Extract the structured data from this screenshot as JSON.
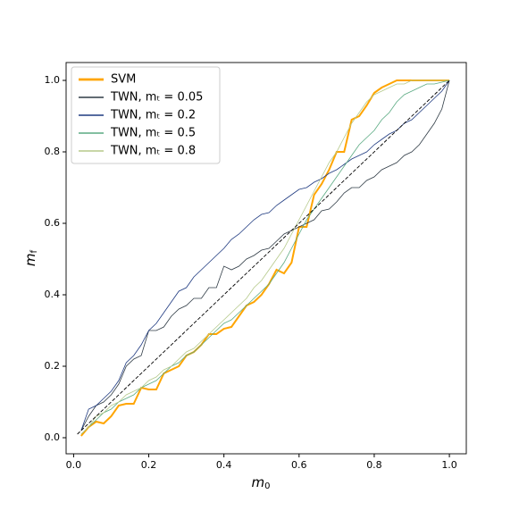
{
  "chart_data": {
    "type": "line",
    "x_label": {
      "symbol": "m",
      "subscript": "0"
    },
    "y_label": {
      "symbol": "m",
      "subscript": "f"
    },
    "x": [
      0.02,
      0.04,
      0.06,
      0.08,
      0.1,
      0.12,
      0.14,
      0.16,
      0.18,
      0.2,
      0.22,
      0.24,
      0.26,
      0.28,
      0.3,
      0.32,
      0.34,
      0.36,
      0.38,
      0.4,
      0.42,
      0.44,
      0.46,
      0.48,
      0.5,
      0.52,
      0.54,
      0.56,
      0.58,
      0.6,
      0.62,
      0.64,
      0.66,
      0.68,
      0.7,
      0.72,
      0.74,
      0.76,
      0.78,
      0.8,
      0.82,
      0.84,
      0.86,
      0.88,
      0.9,
      0.92,
      0.94,
      0.96,
      0.98,
      1.0
    ],
    "series": [
      {
        "name": "SVM",
        "color": "#ffa500",
        "width": 2,
        "values": [
          0.005,
          0.03,
          0.045,
          0.04,
          0.06,
          0.09,
          0.095,
          0.095,
          0.14,
          0.135,
          0.135,
          0.18,
          0.19,
          0.2,
          0.23,
          0.24,
          0.26,
          0.29,
          0.29,
          0.305,
          0.31,
          0.34,
          0.37,
          0.38,
          0.4,
          0.43,
          0.47,
          0.46,
          0.49,
          0.59,
          0.59,
          0.68,
          0.71,
          0.75,
          0.8,
          0.8,
          0.89,
          0.9,
          0.93,
          0.965,
          0.98,
          0.99,
          1,
          1,
          1,
          1,
          1,
          1,
          1,
          1
        ]
      },
      {
        "name": "TWN, mₜ = 0.05",
        "color": "#2f3b45",
        "width": 0.8,
        "values": [
          0.02,
          0.06,
          0.09,
          0.1,
          0.12,
          0.15,
          0.2,
          0.22,
          0.23,
          0.3,
          0.3,
          0.31,
          0.34,
          0.36,
          0.37,
          0.39,
          0.39,
          0.42,
          0.42,
          0.48,
          0.47,
          0.48,
          0.5,
          0.51,
          0.525,
          0.53,
          0.55,
          0.57,
          0.58,
          0.59,
          0.6,
          0.61,
          0.635,
          0.64,
          0.66,
          0.685,
          0.7,
          0.7,
          0.72,
          0.73,
          0.75,
          0.76,
          0.77,
          0.79,
          0.8,
          0.82,
          0.85,
          0.88,
          0.92,
          1.0
        ]
      },
      {
        "name": "TWN, mₜ = 0.2",
        "color": "#1f3a80",
        "width": 0.8,
        "values": [
          0.02,
          0.08,
          0.09,
          0.11,
          0.13,
          0.16,
          0.21,
          0.23,
          0.26,
          0.3,
          0.32,
          0.35,
          0.38,
          0.41,
          0.42,
          0.45,
          0.47,
          0.49,
          0.51,
          0.53,
          0.555,
          0.57,
          0.59,
          0.61,
          0.625,
          0.63,
          0.65,
          0.665,
          0.68,
          0.695,
          0.7,
          0.715,
          0.725,
          0.74,
          0.75,
          0.765,
          0.78,
          0.79,
          0.8,
          0.82,
          0.835,
          0.85,
          0.86,
          0.88,
          0.89,
          0.91,
          0.93,
          0.95,
          0.97,
          1.0
        ]
      },
      {
        "name": "TWN, mₜ = 0.5",
        "color": "#5aaa82",
        "width": 0.8,
        "values": [
          0.01,
          0.03,
          0.05,
          0.07,
          0.08,
          0.1,
          0.11,
          0.12,
          0.14,
          0.15,
          0.16,
          0.18,
          0.2,
          0.21,
          0.23,
          0.24,
          0.26,
          0.28,
          0.3,
          0.32,
          0.33,
          0.35,
          0.37,
          0.39,
          0.41,
          0.43,
          0.46,
          0.49,
          0.53,
          0.57,
          0.61,
          0.64,
          0.67,
          0.7,
          0.73,
          0.76,
          0.79,
          0.82,
          0.84,
          0.86,
          0.89,
          0.91,
          0.94,
          0.96,
          0.97,
          0.98,
          0.99,
          0.99,
          0.995,
          1.0
        ]
      },
      {
        "name": "TWN, mₜ = 0.8",
        "color": "#b5c98a",
        "width": 0.8,
        "values": [
          0.01,
          0.03,
          0.06,
          0.07,
          0.09,
          0.1,
          0.12,
          0.13,
          0.14,
          0.16,
          0.17,
          0.19,
          0.2,
          0.22,
          0.24,
          0.25,
          0.27,
          0.29,
          0.31,
          0.33,
          0.35,
          0.37,
          0.39,
          0.42,
          0.44,
          0.47,
          0.5,
          0.53,
          0.57,
          0.61,
          0.65,
          0.69,
          0.73,
          0.77,
          0.8,
          0.84,
          0.88,
          0.91,
          0.94,
          0.96,
          0.97,
          0.98,
          0.99,
          0.99,
          1,
          1,
          1,
          1,
          1,
          1
        ]
      }
    ],
    "reference_line": {
      "x": [
        0.01,
        1.0
      ],
      "values": [
        0.01,
        1.0
      ],
      "color": "#000000",
      "dashed": true
    },
    "xlim": [
      -0.02,
      1.045
    ],
    "ylim": [
      -0.045,
      1.05
    ],
    "xticks": [
      {
        "value": 0,
        "label": "0.0"
      },
      0.2,
      0.4,
      0.6,
      0.8,
      {
        "value": 1,
        "label": "1.0"
      }
    ],
    "yticks": [
      {
        "value": 0,
        "label": "0.0"
      },
      0.2,
      0.4,
      0.6,
      0.8,
      {
        "value": 1,
        "label": "1.0"
      }
    ],
    "legend": "upper left"
  }
}
